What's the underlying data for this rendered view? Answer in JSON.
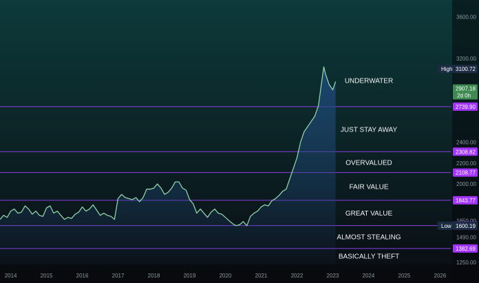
{
  "colors": {
    "bg_top": "#0d3a3a",
    "bg_bottom": "#0a0c12",
    "line": "#8fd2a8",
    "area_top": "#1f4a7a",
    "level_line": "#8b3fe6",
    "level_tag": "#a335ff",
    "last_tag": "#3e8a52",
    "axis_text": "#8a9aa0",
    "high_low_tag": "#1c2b44"
  },
  "chart_data": {
    "type": "area",
    "title": "",
    "xlabel": "",
    "ylabel": "",
    "ylim": [
      1230,
      3760
    ],
    "xlim": [
      2013.7,
      2026.3
    ],
    "grid": false,
    "x_ticks": [
      {
        "value": 2014,
        "label": "2014"
      },
      {
        "value": 2015,
        "label": "2015"
      },
      {
        "value": 2016,
        "label": "2016"
      },
      {
        "value": 2017,
        "label": "2017"
      },
      {
        "value": 2018,
        "label": "2018"
      },
      {
        "value": 2019,
        "label": "2019"
      },
      {
        "value": 2020,
        "label": "2020"
      },
      {
        "value": 2021,
        "label": "2021"
      },
      {
        "value": 2022,
        "label": "2022"
      },
      {
        "value": 2023,
        "label": "2023"
      },
      {
        "value": 2024,
        "label": "2024"
      },
      {
        "value": 2025,
        "label": "2025"
      },
      {
        "value": 2026,
        "label": "2026"
      }
    ],
    "y_ticks": [
      {
        "value": 3600,
        "label": "3600.00"
      },
      {
        "value": 3200,
        "label": "3200.00"
      },
      {
        "value": 2400,
        "label": "2400.00"
      },
      {
        "value": 2200,
        "label": "2200.00"
      },
      {
        "value": 2000,
        "label": "2000.00"
      },
      {
        "value": 1650,
        "label": "1650.00"
      },
      {
        "value": 1490,
        "label": "1490.00"
      },
      {
        "value": 1250,
        "label": "1250.00"
      }
    ],
    "series": [
      {
        "values": [
          [
            2013.7,
            1660
          ],
          [
            2013.8,
            1700
          ],
          [
            2013.9,
            1680
          ],
          [
            2014.0,
            1740
          ],
          [
            2014.1,
            1760
          ],
          [
            2014.2,
            1720
          ],
          [
            2014.3,
            1730
          ],
          [
            2014.4,
            1790
          ],
          [
            2014.5,
            1760
          ],
          [
            2014.6,
            1710
          ],
          [
            2014.7,
            1740
          ],
          [
            2014.8,
            1700
          ],
          [
            2014.9,
            1690
          ],
          [
            2015.0,
            1770
          ],
          [
            2015.1,
            1790
          ],
          [
            2015.2,
            1720
          ],
          [
            2015.3,
            1740
          ],
          [
            2015.4,
            1700
          ],
          [
            2015.5,
            1660
          ],
          [
            2015.6,
            1680
          ],
          [
            2015.7,
            1670
          ],
          [
            2015.8,
            1710
          ],
          [
            2015.9,
            1730
          ],
          [
            2016.0,
            1780
          ],
          [
            2016.1,
            1740
          ],
          [
            2016.2,
            1760
          ],
          [
            2016.3,
            1800
          ],
          [
            2016.4,
            1750
          ],
          [
            2016.5,
            1700
          ],
          [
            2016.6,
            1720
          ],
          [
            2016.7,
            1700
          ],
          [
            2016.8,
            1690
          ],
          [
            2016.9,
            1660
          ],
          [
            2017.0,
            1860
          ],
          [
            2017.1,
            1900
          ],
          [
            2017.2,
            1870
          ],
          [
            2017.3,
            1860
          ],
          [
            2017.4,
            1850
          ],
          [
            2017.5,
            1870
          ],
          [
            2017.6,
            1830
          ],
          [
            2017.7,
            1870
          ],
          [
            2017.8,
            1950
          ],
          [
            2017.9,
            1950
          ],
          [
            2018.0,
            1960
          ],
          [
            2018.1,
            2000
          ],
          [
            2018.2,
            1960
          ],
          [
            2018.3,
            1900
          ],
          [
            2018.4,
            1920
          ],
          [
            2018.5,
            1960
          ],
          [
            2018.6,
            2020
          ],
          [
            2018.7,
            2020
          ],
          [
            2018.8,
            1960
          ],
          [
            2018.9,
            1940
          ],
          [
            2019.0,
            1850
          ],
          [
            2019.1,
            1810
          ],
          [
            2019.2,
            1720
          ],
          [
            2019.3,
            1760
          ],
          [
            2019.4,
            1720
          ],
          [
            2019.5,
            1680
          ],
          [
            2019.6,
            1730
          ],
          [
            2019.7,
            1760
          ],
          [
            2019.8,
            1720
          ],
          [
            2019.9,
            1710
          ],
          [
            2020.0,
            1680
          ],
          [
            2020.1,
            1650
          ],
          [
            2020.2,
            1620
          ],
          [
            2020.3,
            1600
          ],
          [
            2020.4,
            1610
          ],
          [
            2020.5,
            1640
          ],
          [
            2020.6,
            1600
          ],
          [
            2020.7,
            1690
          ],
          [
            2020.8,
            1720
          ],
          [
            2020.9,
            1740
          ],
          [
            2021.0,
            1780
          ],
          [
            2021.1,
            1800
          ],
          [
            2021.2,
            1790
          ],
          [
            2021.3,
            1840
          ],
          [
            2021.4,
            1860
          ],
          [
            2021.5,
            1890
          ],
          [
            2021.6,
            1930
          ],
          [
            2021.7,
            1950
          ],
          [
            2021.8,
            2050
          ],
          [
            2021.9,
            2150
          ],
          [
            2022.0,
            2250
          ],
          [
            2022.1,
            2400
          ],
          [
            2022.2,
            2500
          ],
          [
            2022.3,
            2550
          ],
          [
            2022.4,
            2600
          ],
          [
            2022.5,
            2650
          ],
          [
            2022.6,
            2750
          ],
          [
            2022.7,
            3000
          ],
          [
            2022.75,
            3120
          ],
          [
            2022.8,
            3050
          ],
          [
            2022.9,
            2950
          ],
          [
            2023.0,
            2900
          ],
          [
            2023.08,
            2980
          ]
        ]
      }
    ],
    "levels": [
      {
        "value": 2739.9,
        "label": "2739.90",
        "zone_above": "UNDERWATER"
      },
      {
        "value": 2308.82,
        "label": "2308.82",
        "zone_above": "JUST STAY AWAY"
      },
      {
        "value": 2108.77,
        "label": "2108.77",
        "zone_above": "OVERVALUED"
      },
      {
        "value": 1843.77,
        "label": "1843.77",
        "zone_above": "FAIR VALUE"
      },
      {
        "value": 1601.73,
        "label": "1601.73",
        "zone_above": "GREAT VALUE"
      },
      {
        "value": 1382.69,
        "label": "1382.69",
        "zone_above": "ALMOST STEALING"
      }
    ],
    "zone_below_lowest": "BASICALLY THEFT",
    "zones": [
      {
        "label": "UNDERWATER",
        "value": 2990
      },
      {
        "label": "JUST STAY AWAY",
        "value": 2520
      },
      {
        "label": "OVERVALUED",
        "value": 2205
      },
      {
        "label": "FAIR VALUE",
        "value": 1975
      },
      {
        "label": "GREAT VALUE",
        "value": 1720
      },
      {
        "label": "ALMOST STEALING",
        "value": 1495
      },
      {
        "label": "BASICALLY THEFT",
        "value": 1310
      }
    ],
    "high": {
      "label": "High",
      "value": 3100.72,
      "value_label": "3100.72"
    },
    "low": {
      "label": "Low",
      "value": 1600.19,
      "value_label": "1600.19"
    },
    "last": {
      "value": 2907.18,
      "value_label": "2907.18",
      "countdown": "2d 0h"
    }
  }
}
